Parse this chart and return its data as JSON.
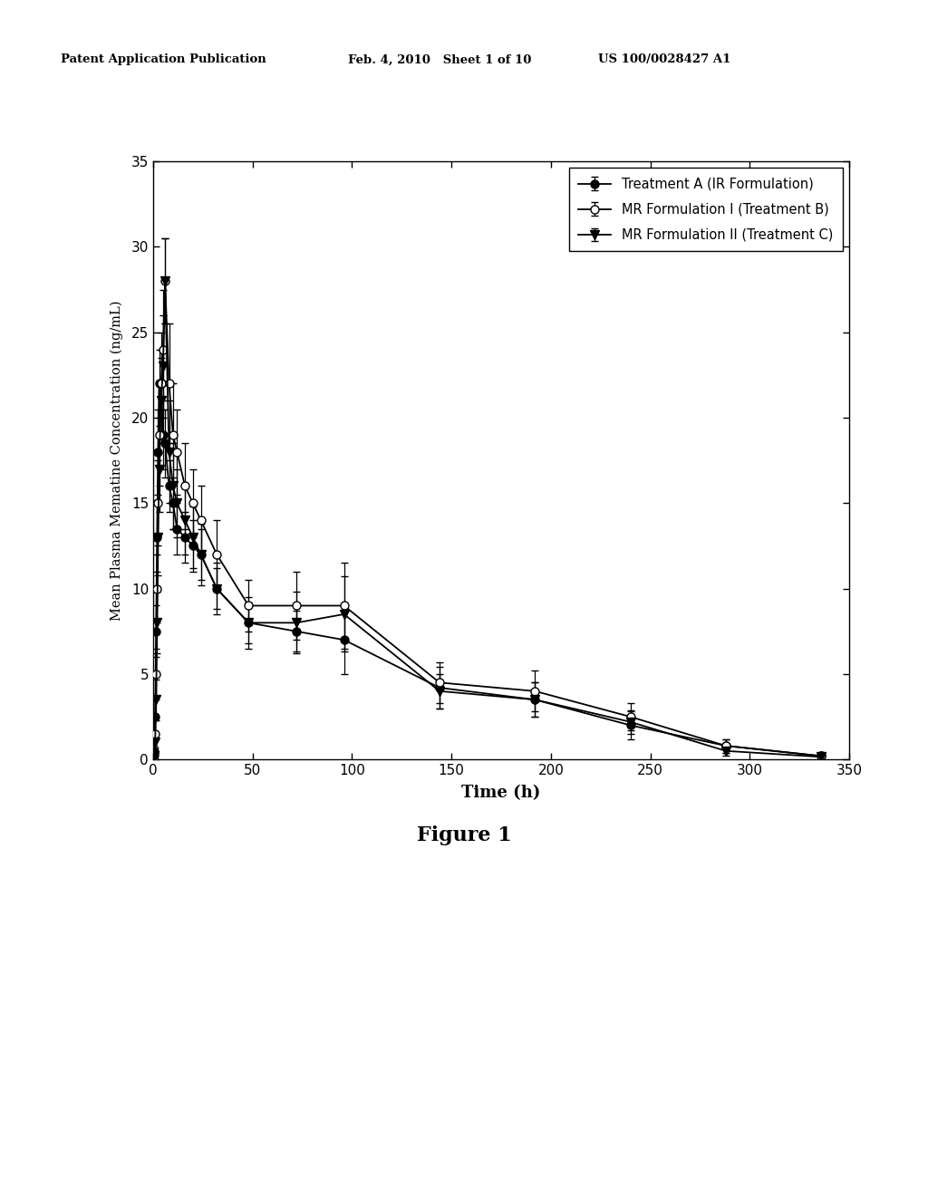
{
  "header_left": "Patent Application Publication",
  "header_mid": "Feb. 4, 2010   Sheet 1 of 10",
  "header_right": "US 100/0028427 A1",
  "xlabel": "Time (h)",
  "ylabel": "Mean Plasma Mematine Concentration (ng/mL)",
  "figure_caption": "Figure 1",
  "xlim": [
    0,
    350
  ],
  "ylim": [
    0,
    35
  ],
  "xticks": [
    0,
    50,
    100,
    150,
    200,
    250,
    300,
    350
  ],
  "yticks": [
    0,
    5,
    10,
    15,
    20,
    25,
    30,
    35
  ],
  "legend_labels": [
    "Treatment A (IR Formulation)",
    "MR Formulation I (Treatment B)",
    "MR Formulation II (Treatment C)"
  ],
  "treatment_A": {
    "x": [
      0,
      0.5,
      1,
      1.5,
      2,
      2.5,
      3,
      4,
      5,
      6,
      8,
      10,
      12,
      16,
      20,
      24,
      32,
      48,
      72,
      96,
      144,
      192,
      240,
      288,
      336
    ],
    "y": [
      0,
      0.5,
      2.5,
      7.5,
      13,
      18,
      22,
      22,
      19,
      18.5,
      16,
      15,
      13.5,
      13,
      12.5,
      12,
      10,
      8,
      7.5,
      7,
      4.2,
      3.5,
      2.0,
      0.8,
      0.2
    ],
    "yerr": [
      0,
      0.3,
      1.0,
      1.5,
      2.0,
      2.5,
      2.0,
      2.0,
      2.0,
      2.0,
      1.5,
      1.5,
      1.5,
      1.5,
      1.5,
      1.5,
      1.2,
      1.2,
      1.2,
      2.0,
      1.2,
      1.0,
      0.8,
      0.4,
      0.15
    ]
  },
  "treatment_B": {
    "x": [
      0,
      0.5,
      1,
      1.5,
      2,
      2.5,
      3,
      4,
      5,
      6,
      8,
      10,
      12,
      16,
      20,
      24,
      32,
      48,
      72,
      96,
      144,
      192,
      240,
      288,
      336
    ],
    "y": [
      0,
      0.3,
      1.5,
      5,
      10,
      15,
      19,
      22,
      24,
      28,
      22,
      19,
      18,
      16,
      15,
      14,
      12,
      9,
      9,
      9,
      4.5,
      4.0,
      2.5,
      0.8,
      0.2
    ],
    "yerr": [
      0,
      0.2,
      0.8,
      1.5,
      2.0,
      2.5,
      3.0,
      3.0,
      3.5,
      2.5,
      3.5,
      3.0,
      2.5,
      2.5,
      2.0,
      2.0,
      2.0,
      1.5,
      2.0,
      2.5,
      1.2,
      1.2,
      0.8,
      0.4,
      0.15
    ]
  },
  "treatment_C": {
    "x": [
      0,
      0.5,
      1,
      1.5,
      2,
      2.5,
      3,
      4,
      5,
      6,
      8,
      10,
      12,
      16,
      20,
      24,
      32,
      48,
      72,
      96,
      144,
      192,
      240,
      288,
      336
    ],
    "y": [
      0,
      0.2,
      1.0,
      3.5,
      8,
      13,
      17,
      21,
      23,
      28,
      18,
      16,
      15,
      14,
      13,
      12,
      10,
      8,
      8,
      8.5,
      4.0,
      3.5,
      2.2,
      0.5,
      0.15
    ],
    "yerr": [
      0,
      0.15,
      0.6,
      1.2,
      1.8,
      2.2,
      2.5,
      2.5,
      3.0,
      2.5,
      3.0,
      2.5,
      2.0,
      2.0,
      1.8,
      1.8,
      1.5,
      1.5,
      1.8,
      2.2,
      1.0,
      1.0,
      0.7,
      0.3,
      0.12
    ]
  },
  "background_color": "#ffffff",
  "plot_bg_color": "#ffffff"
}
